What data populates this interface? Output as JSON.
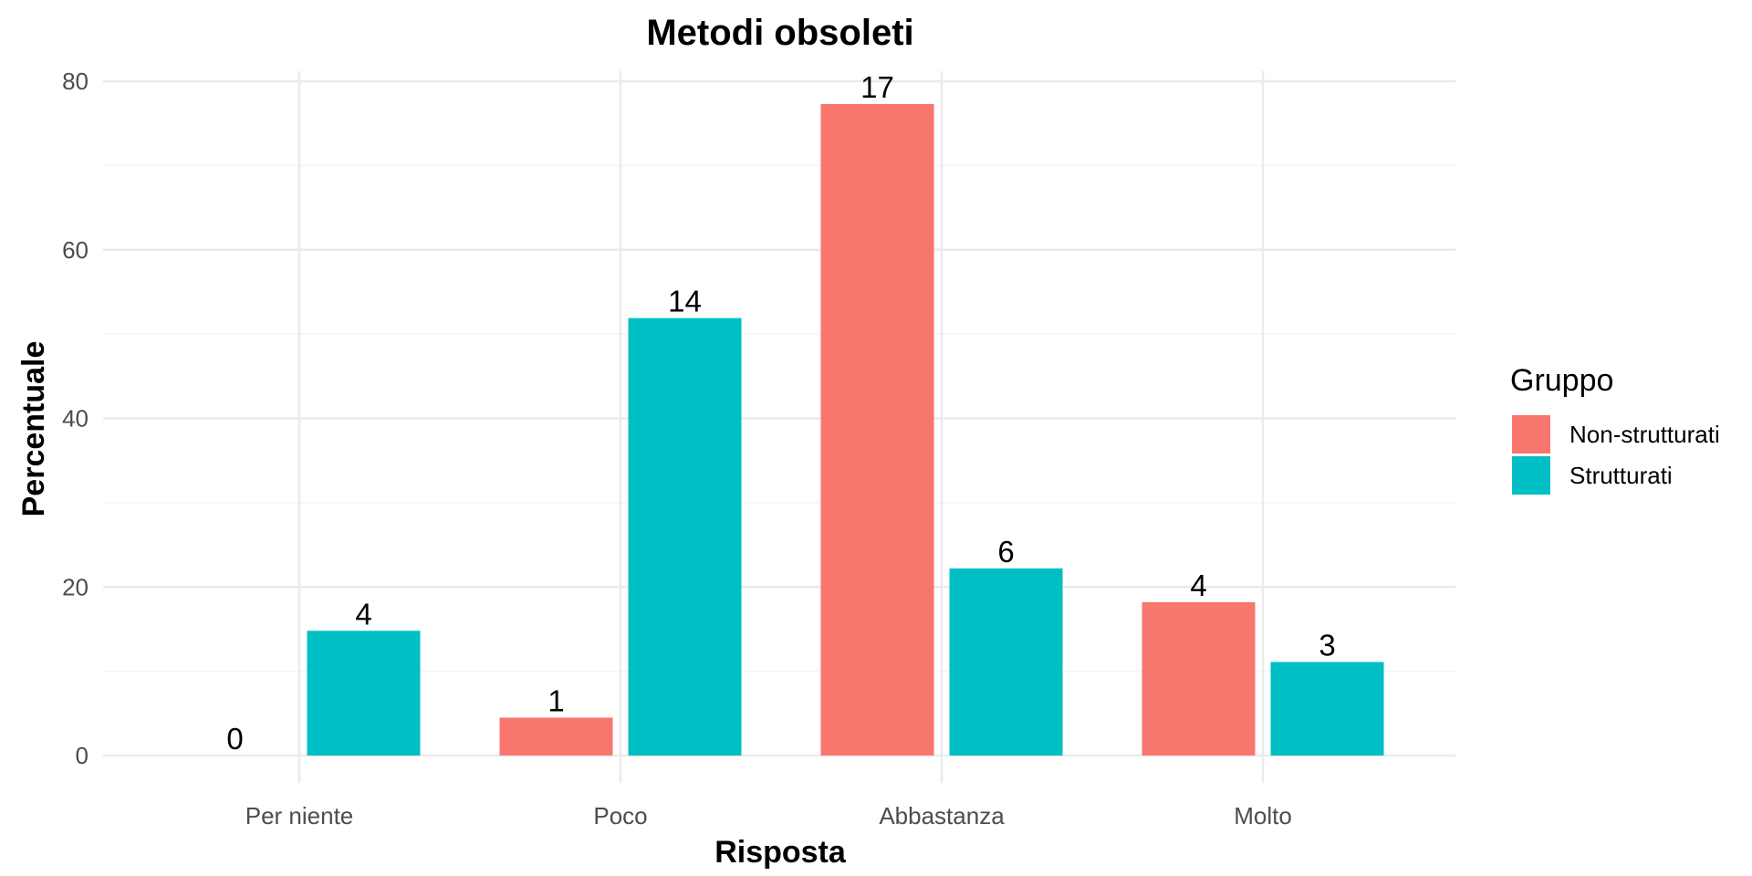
{
  "chart_data": {
    "type": "bar",
    "title": "Metodi obsoleti",
    "xlabel": "Risposta",
    "ylabel": "Percentuale",
    "categories": [
      "Per niente",
      "Poco",
      "Abbastanza",
      "Molto"
    ],
    "ylim": [
      0,
      80
    ],
    "yticks": [
      0,
      20,
      40,
      60,
      80
    ],
    "grid": true,
    "legend": {
      "title": "Gruppo",
      "position": "right"
    },
    "series": [
      {
        "name": "Non-strutturati",
        "color": "#F8766D",
        "values": [
          0,
          4.5,
          77.3,
          18.2
        ],
        "labels": [
          "0",
          "1",
          "17",
          "4"
        ]
      },
      {
        "name": "Strutturati",
        "color": "#00BFC4",
        "values": [
          14.8,
          51.9,
          22.2,
          11.1
        ],
        "labels": [
          "4",
          "14",
          "6",
          "3"
        ]
      }
    ]
  }
}
